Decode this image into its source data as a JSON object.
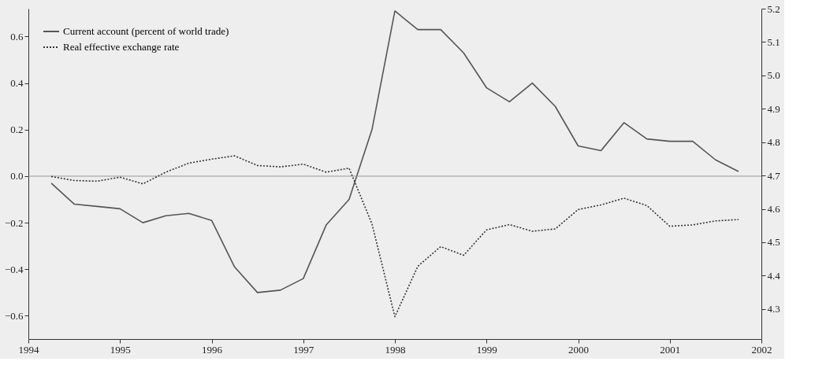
{
  "chart_data": {
    "type": "line",
    "x": [
      1994.25,
      1994.5,
      1994.75,
      1995,
      1995.25,
      1995.5,
      1995.75,
      1996,
      1996.25,
      1996.5,
      1996.75,
      1997,
      1997.25,
      1997.5,
      1997.75,
      1998,
      1998.25,
      1998.5,
      1998.75,
      1999,
      1999.25,
      1999.5,
      1999.75,
      2000,
      2000.25,
      2000.5,
      2000.75,
      2001,
      2001.25,
      2001.5,
      2001.75
    ],
    "series": [
      {
        "name": "Current account (percent of world trade)",
        "color": "#555555",
        "line_style": "solid",
        "axis": "y",
        "values": [
          -0.03,
          -0.12,
          -0.13,
          -0.14,
          -0.2,
          -0.17,
          -0.16,
          -0.19,
          -0.39,
          -0.5,
          -0.49,
          -0.44,
          -0.21,
          -0.1,
          0.2,
          0.71,
          0.63,
          0.63,
          0.53,
          0.38,
          0.32,
          0.4,
          0.3,
          0.13,
          0.11,
          0.23,
          0.16,
          0.15,
          0.15,
          0.07,
          0.02
        ]
      },
      {
        "name": "Real effective exchange rate",
        "color": "#333333",
        "line_style": "dotted",
        "axis": "y2",
        "values": [
          4.697,
          4.685,
          4.683,
          4.695,
          4.675,
          4.71,
          4.737,
          4.749,
          4.759,
          4.73,
          4.726,
          4.734,
          4.71,
          4.722,
          4.555,
          4.277,
          4.428,
          4.487,
          4.461,
          4.537,
          4.553,
          4.533,
          4.54,
          4.598,
          4.612,
          4.632,
          4.61,
          4.548,
          4.552,
          4.564,
          4.568
        ]
      }
    ],
    "xlim": [
      1994,
      2002
    ],
    "xticks": [
      1994,
      1995,
      1996,
      1997,
      1998,
      1999,
      2000,
      2001,
      2002
    ],
    "ylim": [
      -0.7,
      0.72
    ],
    "yticks": [
      {
        "value": -0.6,
        "label": "−0.6"
      },
      {
        "value": -0.4,
        "label": "−0.4"
      },
      {
        "value": -0.2,
        "label": "−0.2"
      },
      {
        "value": 0,
        "label": "0.0"
      },
      0.2,
      0.4,
      0.6
    ],
    "y2lim": [
      4.21,
      5.2
    ],
    "y2ticks": [
      4.3,
      4.4,
      4.5,
      4.6,
      4.7,
      4.8,
      4.9,
      {
        "value": 5,
        "label": "5.0"
      },
      5.1,
      5.2
    ],
    "ref_lines": [
      {
        "axis": "y",
        "value": 0,
        "color": "#999999"
      }
    ],
    "legend": "top left",
    "grid": false
  }
}
